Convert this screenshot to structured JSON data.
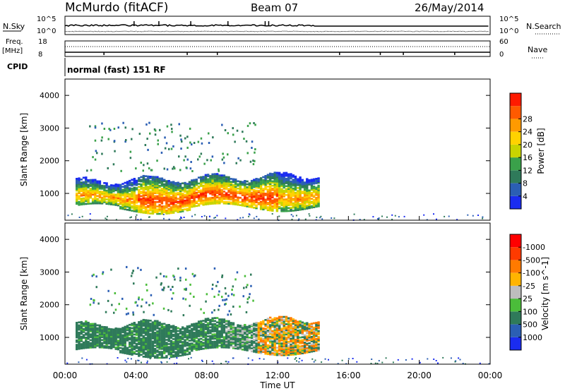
{
  "header": {
    "station": "McMurdo (fitACF)",
    "beam": "Beam 07",
    "date": "26/May/2014"
  },
  "top_panels": {
    "nsky_label": "N.Sky",
    "nsky_tick_hi": "10^5",
    "nsky_tick_lo": "10^0",
    "nsearch_label": "N.Search",
    "freq_label": "Freq.",
    "freq_unit": "[MHz]",
    "freq_tick_hi": "18",
    "freq_tick_lo": "8",
    "nave_tick_hi": "60",
    "nave_tick_lo": "0",
    "nave_label": "Nave",
    "cpid_label": "CPID",
    "cpid_text": "normal (fast) 151 RF"
  },
  "chart_data": [
    {
      "type": "heatmap",
      "name": "power",
      "ylabel": "Slant Range [km]",
      "xlabel": "Time UT",
      "xlim": [
        0,
        24
      ],
      "ylim": [
        180,
        4500
      ],
      "yticks": [
        "1000",
        "2000",
        "3000",
        "4000"
      ],
      "xticks": [
        "00:00",
        "04:00",
        "08:00",
        "12:00",
        "16:00",
        "20:00",
        "00:00"
      ],
      "colorbar": {
        "label": "Power [dB]",
        "ticks": [
          "4",
          "8",
          "12",
          "16",
          "20",
          "24",
          "28"
        ],
        "colors": [
          "#1a2cf0",
          "#2b5fb4",
          "#2f7a5a",
          "#3aa14a",
          "#c8d400",
          "#ffd200",
          "#ff9a00",
          "#ff5a00",
          "#ff1a00"
        ]
      },
      "features": [
        {
          "description": "main echo band",
          "t_start": 0.6,
          "t_end": 14.3,
          "range_min": 500,
          "range_max": 1700,
          "peak_db": 30
        },
        {
          "description": "patchy far echoes",
          "t_start": 1.5,
          "t_end": 10.5,
          "range_min": 1700,
          "range_max": 3200,
          "peak_db": 12
        }
      ]
    },
    {
      "type": "heatmap",
      "name": "velocity",
      "ylabel": "Slant Range [km]",
      "xlabel": "Time UT",
      "xlim": [
        0,
        24
      ],
      "ylim": [
        180,
        4500
      ],
      "yticks": [
        "1000",
        "2000",
        "3000",
        "4000"
      ],
      "xticks": [
        "00:00",
        "04:00",
        "08:00",
        "12:00",
        "16:00",
        "20:00",
        "00:00"
      ],
      "colorbar": {
        "label": "Velocity [m s^-1]",
        "ticks": [
          "1000",
          "500",
          "100",
          "25",
          "-25",
          "-100",
          "-500",
          "-1000"
        ],
        "colors": [
          "#1a2cf0",
          "#2b5fb4",
          "#2f7a5a",
          "#4bbd3a",
          "#bdbdbd",
          "#ffb400",
          "#ff7a00",
          "#ff3a00",
          "#ff0000"
        ]
      },
      "features": [
        {
          "description": "main echo band",
          "t_start": 0.6,
          "t_end": 14.3,
          "range_min": 500,
          "range_max": 1700,
          "typical_velocity": 100
        },
        {
          "description": "negative velocity region",
          "t_start": 10.8,
          "t_end": 14.3,
          "range_min": 900,
          "range_max": 1700,
          "typical_velocity": -100
        }
      ]
    }
  ]
}
